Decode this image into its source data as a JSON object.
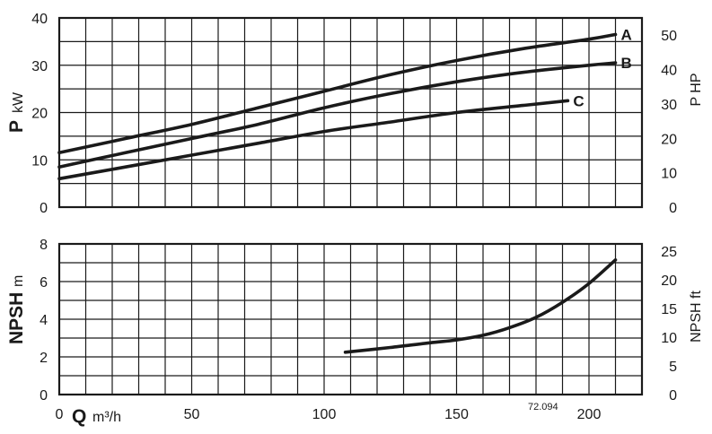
{
  "chart_data": [
    {
      "type": "line",
      "title": "",
      "xlabel_main": "Q",
      "xlabel_unit": "m³/h",
      "ylabel_main": "P",
      "ylabel_unit": "kW",
      "y2label": "P HP",
      "xlim": [
        0,
        220
      ],
      "ylim": [
        0,
        40
      ],
      "y2lim": [
        0,
        55
      ],
      "x_ticks": [
        "0",
        "50",
        "100",
        "150",
        "200"
      ],
      "y_ticks": [
        "0",
        "10",
        "20",
        "30",
        "40"
      ],
      "y2_ticks": [
        "0",
        "10",
        "20",
        "30",
        "40",
        "50"
      ],
      "grid": true,
      "series": [
        {
          "name": "A",
          "x": [
            0,
            25,
            50,
            75,
            100,
            125,
            150,
            175,
            200,
            210
          ],
          "values": [
            11.5,
            14.5,
            17.5,
            21,
            24.5,
            28,
            31,
            33.5,
            35.5,
            36.5
          ]
        },
        {
          "name": "B",
          "x": [
            0,
            25,
            50,
            75,
            100,
            125,
            150,
            175,
            200,
            210
          ],
          "values": [
            8.5,
            11.5,
            14.5,
            17.5,
            21,
            24,
            26.5,
            28.5,
            30,
            30.5
          ]
        },
        {
          "name": "C",
          "x": [
            0,
            25,
            50,
            75,
            100,
            125,
            150,
            175,
            192
          ],
          "values": [
            6,
            8.5,
            11,
            13.5,
            16,
            18,
            20,
            21.5,
            22.5
          ]
        }
      ]
    },
    {
      "type": "line",
      "title": "",
      "xlabel_main": "Q",
      "xlabel_unit": "m³/h",
      "ylabel_main": "NPSH",
      "ylabel_unit": "m",
      "y2label": "NPSH ft",
      "xlim": [
        0,
        220
      ],
      "ylim": [
        0,
        8
      ],
      "y2lim": [
        0,
        26.25
      ],
      "x_ticks": [
        "0",
        "50",
        "100",
        "150",
        "200"
      ],
      "y_ticks": [
        "0",
        "2",
        "4",
        "6",
        "8"
      ],
      "y2_ticks": [
        "0",
        "5",
        "10",
        "15",
        "20",
        "25"
      ],
      "grid": true,
      "series": [
        {
          "name": "",
          "x": [
            108,
            125,
            140,
            150,
            160,
            170,
            180,
            190,
            200,
            210
          ],
          "values": [
            2.25,
            2.5,
            2.75,
            2.9,
            3.15,
            3.55,
            4.1,
            4.9,
            5.9,
            7.15
          ]
        }
      ]
    }
  ],
  "figure_ref": "72.094"
}
